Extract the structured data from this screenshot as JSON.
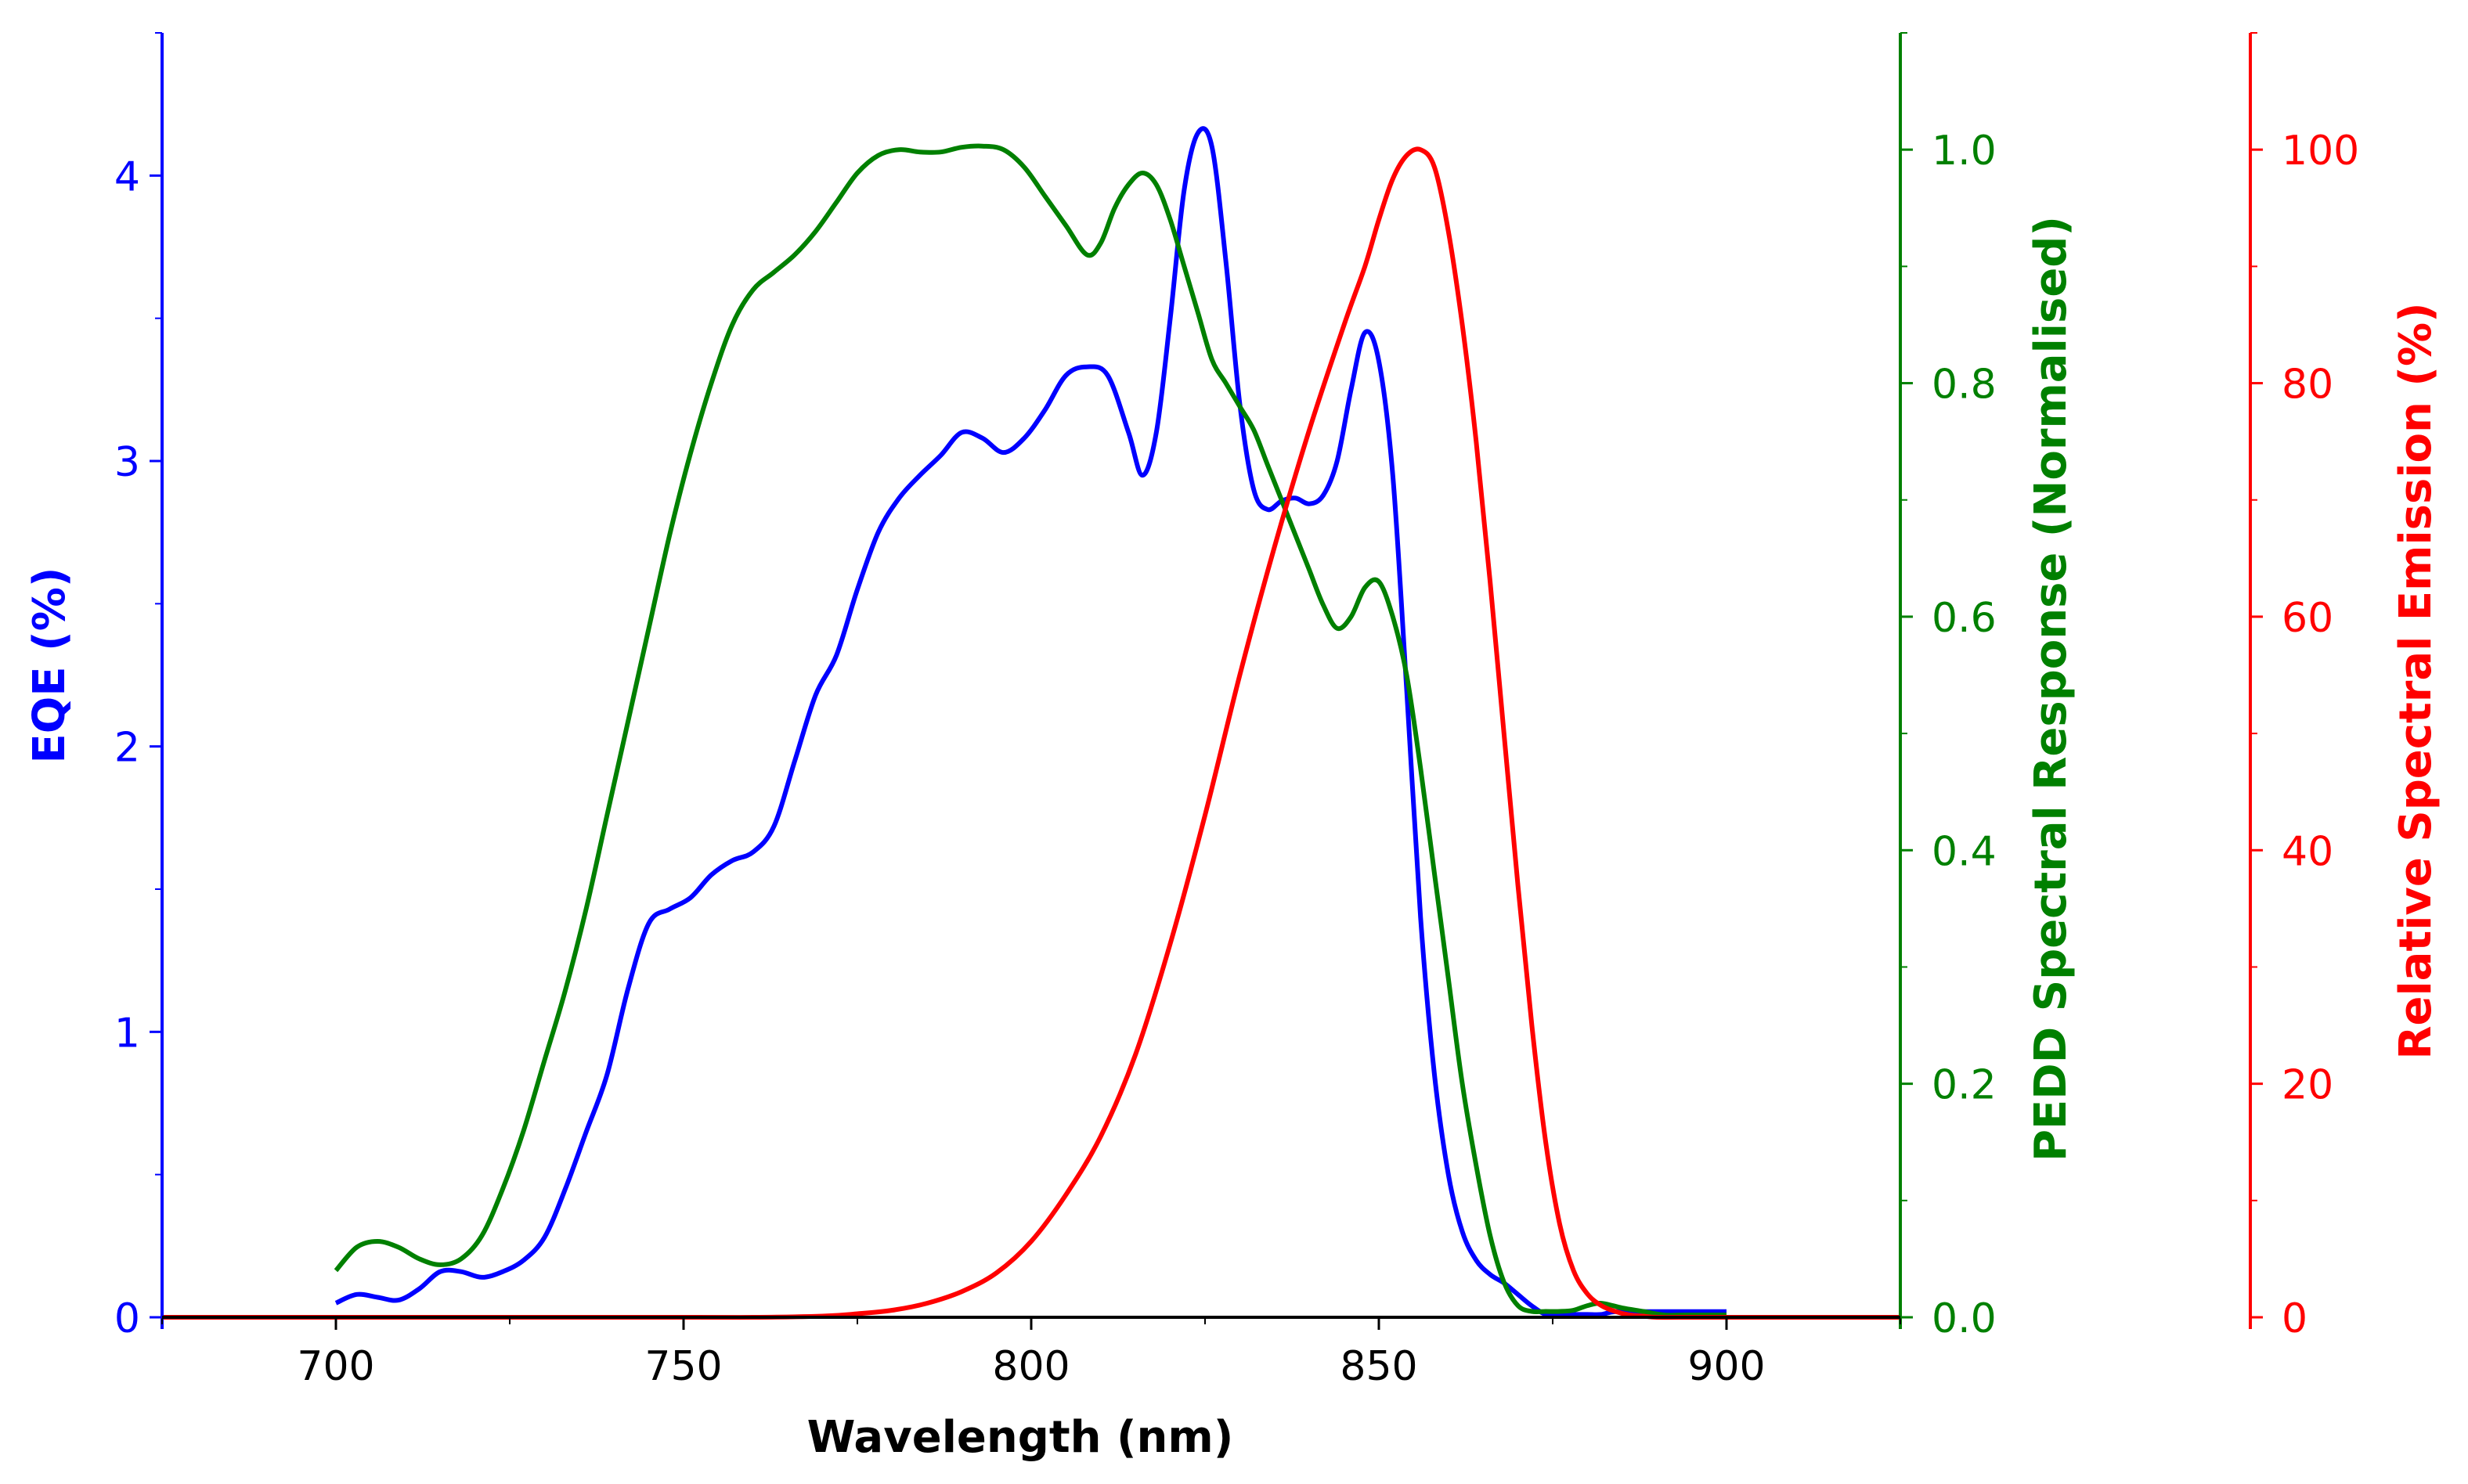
{
  "chart_data": {
    "type": "line",
    "xlabel": "Wavelength (nm)",
    "xlim": [
      675,
      925
    ],
    "xticks": [
      700,
      750,
      800,
      850,
      900
    ],
    "axes": {
      "eqe": {
        "label": "EQE (%)",
        "color": "#0000ff",
        "ylim": [
          0,
          4.5
        ],
        "ticks": [
          0,
          1,
          2,
          3,
          4
        ],
        "tick_labels": [
          "0",
          "1",
          "2",
          "3",
          "4"
        ],
        "minor_step": 0.5
      },
      "pedd": {
        "label": "PEDD Spectral Response (Normalised)",
        "color": "#008000",
        "ylim": [
          0,
          1.1
        ],
        "ticks": [
          0,
          0.2,
          0.4,
          0.6,
          0.8,
          1.0
        ],
        "tick_labels": [
          "0.0",
          "0.2",
          "0.4",
          "0.6",
          "0.8",
          "1.0"
        ],
        "minor_step": 0.1
      },
      "emission": {
        "label": "Relative Spectral Emission (%)",
        "color": "#ff0000",
        "ylim": [
          0,
          110
        ],
        "ticks": [
          0,
          20,
          40,
          60,
          80,
          100
        ],
        "tick_labels": [
          "0",
          "20",
          "40",
          "60",
          "80",
          "100"
        ],
        "minor_step": 10
      }
    },
    "series": [
      {
        "name": "EQE",
        "axis": "eqe",
        "color": "#0000ff",
        "x": [
          700,
          703,
          706,
          709,
          712,
          715,
          718,
          721,
          724,
          727,
          730,
          733,
          736,
          739,
          742,
          745,
          748,
          751,
          754,
          757,
          760,
          763,
          766,
          769,
          772,
          775,
          778,
          781,
          784,
          787,
          790,
          793,
          796,
          799,
          802,
          805,
          808,
          811,
          814,
          816,
          818,
          820,
          822,
          824,
          826,
          828,
          830,
          832,
          834,
          836,
          838,
          840,
          842,
          844,
          846,
          848,
          850,
          852,
          854,
          856,
          858,
          860,
          862,
          864,
          866,
          868,
          870,
          872,
          874,
          876,
          878,
          880,
          882,
          884,
          888,
          892,
          896,
          900
        ],
        "values": [
          0.05,
          0.08,
          0.07,
          0.06,
          0.1,
          0.16,
          0.16,
          0.14,
          0.16,
          0.2,
          0.28,
          0.45,
          0.65,
          0.85,
          1.15,
          1.38,
          1.43,
          1.47,
          1.55,
          1.6,
          1.63,
          1.72,
          1.95,
          2.18,
          2.32,
          2.55,
          2.75,
          2.87,
          2.95,
          3.02,
          3.1,
          3.08,
          3.03,
          3.08,
          3.18,
          3.3,
          3.33,
          3.3,
          3.1,
          2.95,
          3.1,
          3.5,
          3.95,
          4.15,
          4.1,
          3.7,
          3.2,
          2.9,
          2.83,
          2.86,
          2.87,
          2.85,
          2.88,
          3.0,
          3.25,
          3.45,
          3.35,
          2.95,
          2.2,
          1.4,
          0.85,
          0.5,
          0.3,
          0.2,
          0.15,
          0.12,
          0.08,
          0.04,
          0.01,
          0.01,
          0.01,
          0.01,
          0.01,
          0.02,
          0.02,
          0.02,
          0.02,
          0.02
        ]
      },
      {
        "name": "PEDD Spectral Response",
        "axis": "pedd",
        "color": "#008000",
        "x": [
          700,
          703,
          706,
          709,
          712,
          715,
          718,
          721,
          724,
          727,
          730,
          733,
          736,
          739,
          742,
          745,
          748,
          751,
          754,
          757,
          760,
          763,
          766,
          769,
          772,
          775,
          778,
          781,
          784,
          787,
          790,
          793,
          796,
          799,
          802,
          805,
          808,
          810,
          812,
          814,
          816,
          818,
          820,
          822,
          824,
          826,
          828,
          830,
          832,
          834,
          836,
          838,
          840,
          842,
          844,
          846,
          848,
          850,
          852,
          854,
          856,
          858,
          860,
          862,
          864,
          866,
          868,
          870,
          872,
          874,
          876,
          878,
          880,
          882,
          885,
          888,
          891,
          894,
          897,
          900
        ],
        "values": [
          0.04,
          0.06,
          0.065,
          0.06,
          0.05,
          0.045,
          0.05,
          0.07,
          0.11,
          0.16,
          0.22,
          0.28,
          0.35,
          0.43,
          0.51,
          0.59,
          0.67,
          0.74,
          0.8,
          0.85,
          0.88,
          0.895,
          0.91,
          0.93,
          0.955,
          0.98,
          0.995,
          1.0,
          0.998,
          0.998,
          1.002,
          1.003,
          1.0,
          0.985,
          0.96,
          0.935,
          0.91,
          0.92,
          0.95,
          0.97,
          0.98,
          0.97,
          0.94,
          0.9,
          0.86,
          0.82,
          0.8,
          0.78,
          0.76,
          0.73,
          0.7,
          0.67,
          0.64,
          0.61,
          0.59,
          0.6,
          0.625,
          0.63,
          0.6,
          0.55,
          0.47,
          0.38,
          0.29,
          0.2,
          0.13,
          0.07,
          0.03,
          0.01,
          0.005,
          0.005,
          0.005,
          0.006,
          0.01,
          0.012,
          0.008,
          0.005,
          0.002,
          0.002,
          0.002,
          0.002
        ]
      },
      {
        "name": "Relative Spectral Emission",
        "axis": "emission",
        "color": "#ff0000",
        "x": [
          675,
          700,
          750,
          760,
          770,
          775,
          780,
          785,
          790,
          795,
          800,
          805,
          810,
          815,
          820,
          825,
          830,
          835,
          840,
          845,
          848,
          850,
          852,
          854,
          856,
          858,
          860,
          862,
          864,
          866,
          868,
          870,
          872,
          874,
          876,
          878,
          880,
          882,
          884,
          886,
          888,
          890,
          895,
          900,
          925
        ],
        "values": [
          0,
          0,
          0,
          0,
          0.1,
          0.3,
          0.6,
          1.2,
          2.2,
          3.8,
          6.5,
          10.5,
          15.5,
          22.5,
          32,
          43,
          55,
          66,
          76,
          85,
          90,
          94,
          97.5,
          99.5,
          100,
          98.5,
          93,
          85,
          75,
          63,
          50,
          37,
          25,
          15,
          8,
          4,
          2,
          1,
          0.5,
          0.2,
          0.1,
          0,
          0,
          0,
          0
        ]
      }
    ]
  }
}
